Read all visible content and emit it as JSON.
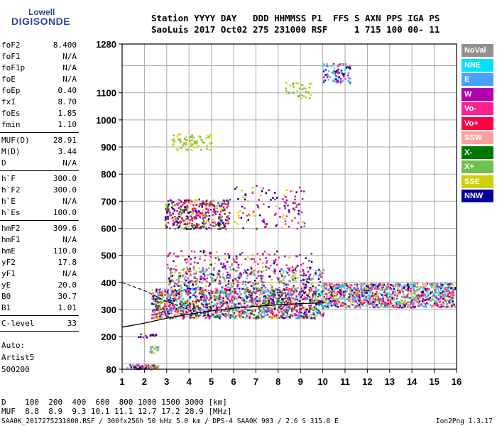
{
  "logo": {
    "top": "Lowell",
    "main": "DIGISONDE"
  },
  "header": {
    "line1": "Station YYYY DAY   DDD HHMMSS P1  FFS S AXN PPS IGA PS",
    "line2": "SaoLuis 2017 Oct02 275 231000 RSF     1 715 100 00- 11"
  },
  "params": [
    {
      "key": "foF2",
      "value": "8.400"
    },
    {
      "key": "foF1",
      "value": "N/A"
    },
    {
      "key": "foF1p",
      "value": "N/A"
    },
    {
      "key": "foE",
      "value": "N/A"
    },
    {
      "key": "foEp",
      "value": "0.40"
    },
    {
      "key": "fxI",
      "value": "8.70"
    },
    {
      "key": "foEs",
      "value": "1.85"
    },
    {
      "key": "fmin",
      "value": "1.10"
    },
    {
      "key": "MUF(D)",
      "value": "28.91"
    },
    {
      "key": "M(D)",
      "value": "3.44"
    },
    {
      "key": "D",
      "value": "N/A"
    },
    {
      "key": "h`F",
      "value": "300.0"
    },
    {
      "key": "h`F2",
      "value": "300.0"
    },
    {
      "key": "h`E",
      "value": "N/A"
    },
    {
      "key": "h`Es",
      "value": "100.0"
    },
    {
      "key": "hmF2",
      "value": "309.6"
    },
    {
      "key": "hmF1",
      "value": "N/A"
    },
    {
      "key": "hmE",
      "value": "110.0"
    },
    {
      "key": "yF2",
      "value": "17.8"
    },
    {
      "key": "yF1",
      "value": "N/A"
    },
    {
      "key": "yE",
      "value": "20.0"
    },
    {
      "key": "B0",
      "value": "30.7"
    },
    {
      "key": "B1",
      "value": "1.01"
    },
    {
      "key": "C-level",
      "value": "33"
    }
  ],
  "auto": [
    "Auto:",
    "Artist5",
    "500200"
  ],
  "bottom": {
    "d_line": "D    100  200  400  600  800 1000 1500 3000 [km]",
    "muf_line": "MUF  8.8  8.9  9.3 10.1 11.1 12.7 17.2 28.9 [MHz]",
    "file_line": "SAA0K_2017275231000.RSF / 300fx256h 50 kHz 5.0 km / DPS-4 SAA0K 903 / 2.6 S 315.8 E",
    "version": "Ion2Png 1.3.17"
  },
  "legend": [
    {
      "label": "NoVal",
      "color": "#909090"
    },
    {
      "label": "NNE",
      "color": "#00e0ff"
    },
    {
      "label": "E",
      "color": "#4aa0ff"
    },
    {
      "label": "W",
      "color": "#b000b0"
    },
    {
      "label": "Vo-",
      "color": "#ff2090"
    },
    {
      "label": "Vo+",
      "color": "#ff0040"
    },
    {
      "label": "SSW",
      "color": "#ffa0a0"
    },
    {
      "label": "X-",
      "color": "#007800"
    },
    {
      "label": "X+",
      "color": "#70c050"
    },
    {
      "label": "SSE",
      "color": "#d0d000"
    },
    {
      "label": "NNW",
      "color": "#0000a0"
    }
  ],
  "chart_data": {
    "type": "scatter",
    "xlim": [
      1,
      16
    ],
    "ylim": [
      80,
      1280
    ],
    "x_ticks": [
      1,
      2,
      3,
      4,
      5,
      6,
      7,
      8,
      9,
      10,
      11,
      12,
      13,
      14,
      15,
      16
    ],
    "y_ticks": [
      80,
      200,
      300,
      400,
      500,
      600,
      700,
      800,
      900,
      1000,
      1100,
      1280
    ],
    "grid": true,
    "xlabel": "",
    "ylabel": "",
    "clusters": [
      {
        "x": [
          1.2,
          2.6
        ],
        "y": [
          82,
          100
        ],
        "n": 80,
        "colors": [
          "#ff0040",
          "#ff2090",
          "#d0d000",
          "#4aa0ff",
          "#0000a0"
        ]
      },
      {
        "x": [
          2.2,
          2.6
        ],
        "y": [
          140,
          170
        ],
        "n": 20,
        "colors": [
          "#d0d000",
          "#70c050",
          "#4aa0ff"
        ]
      },
      {
        "x": [
          1.7,
          2.5
        ],
        "y": [
          200,
          215
        ],
        "n": 15,
        "colors": [
          "#ff0040",
          "#b000b0",
          "#0000a0"
        ]
      },
      {
        "x": [
          2.3,
          10
        ],
        "y": [
          270,
          380
        ],
        "n": 1600,
        "colors": [
          "#ff0040",
          "#ff2090",
          "#ffa0a0",
          "#b000b0",
          "#d0d000",
          "#4aa0ff",
          "#00e0ff",
          "#0000a0",
          "#007800"
        ]
      },
      {
        "x": [
          10,
          15.9
        ],
        "y": [
          310,
          400
        ],
        "n": 1100,
        "colors": [
          "#ff0040",
          "#ff2090",
          "#ffa0a0",
          "#b000b0",
          "#d0d000",
          "#4aa0ff",
          "#00e0ff",
          "#0000a0",
          "#70c050"
        ]
      },
      {
        "x": [
          3,
          10
        ],
        "y": [
          380,
          460
        ],
        "n": 450,
        "colors": [
          "#d0d000",
          "#0000a0",
          "#b000b0",
          "#ff2090",
          "#4aa0ff",
          "#70c050"
        ]
      },
      {
        "x": [
          3,
          9.5
        ],
        "y": [
          460,
          520
        ],
        "n": 120,
        "colors": [
          "#b000b0",
          "#ff2090",
          "#0000a0",
          "#d0d000"
        ]
      },
      {
        "x": [
          2.9,
          5.8
        ],
        "y": [
          600,
          710
        ],
        "n": 380,
        "colors": [
          "#d0d000",
          "#b000b0",
          "#0000a0",
          "#ff2090",
          "#007800",
          "#ff0040"
        ]
      },
      {
        "x": [
          6,
          9.2
        ],
        "y": [
          600,
          760
        ],
        "n": 120,
        "colors": [
          "#b000b0",
          "#ff2090",
          "#d0d000",
          "#0000a0"
        ]
      },
      {
        "x": [
          3.2,
          5
        ],
        "y": [
          890,
          950
        ],
        "n": 80,
        "colors": [
          "#d0d000",
          "#70c050"
        ]
      },
      {
        "x": [
          8.3,
          9.5
        ],
        "y": [
          1080,
          1140
        ],
        "n": 40,
        "colors": [
          "#d0d000",
          "#70c050"
        ]
      },
      {
        "x": [
          10,
          11.2
        ],
        "y": [
          1140,
          1210
        ],
        "n": 90,
        "colors": [
          "#4aa0ff",
          "#00e0ff",
          "#b000b0",
          "#0000a0",
          "#ff2090"
        ]
      }
    ],
    "trace": {
      "x": [
        1,
        2,
        3,
        4,
        5,
        6,
        7,
        8,
        9,
        10
      ],
      "y": [
        235,
        250,
        268,
        283,
        295,
        305,
        312,
        318,
        322,
        325
      ]
    },
    "trace_dashed": {
      "x": [
        1,
        2,
        3,
        4
      ],
      "y": [
        400,
        370,
        330,
        300
      ]
    }
  }
}
